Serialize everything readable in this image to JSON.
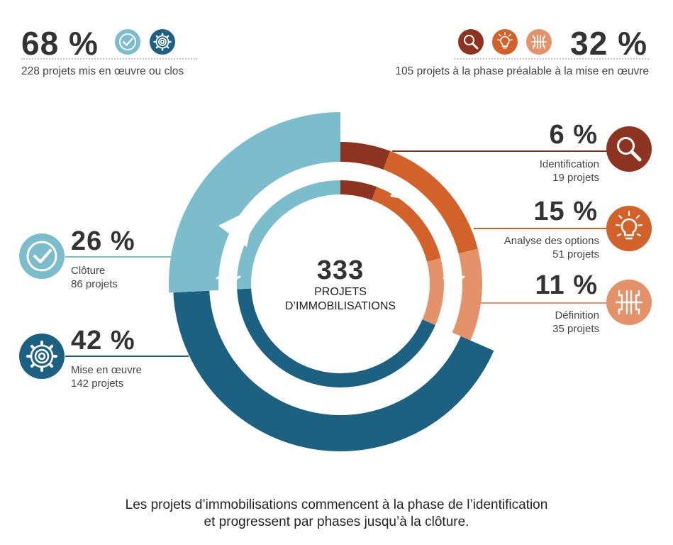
{
  "summary": {
    "left": {
      "percent": "68 %",
      "text": "228 projets mis en œuvre ou clos"
    },
    "right": {
      "percent": "32 %",
      "text": "105 projets à la phase préalable à la mise en œuvre"
    }
  },
  "center": {
    "total": "333",
    "label_line1": "PROJETS",
    "label_line2": "D’IMMOBILISATIONS"
  },
  "caption": {
    "line1": "Les projets d’immobilisations commencent à la phase de l’identification",
    "line2": "et progressent par phases jusqu’à la clôture."
  },
  "chart_data": {
    "type": "pie",
    "total": 333,
    "series": [
      {
        "name": "Identification",
        "percent_label": "6 %",
        "count_label": "19 projets",
        "value": 19,
        "percent": 6,
        "color": "#8c3420",
        "icon": "magnifier-icon"
      },
      {
        "name": "Analyse des options",
        "percent_label": "15 %",
        "count_label": "51 projets",
        "value": 51,
        "percent": 15,
        "color": "#d3622a",
        "icon": "lightbulb-icon"
      },
      {
        "name": "Définition",
        "percent_label": "11 %",
        "count_label": "35 projets",
        "value": 35,
        "percent": 11,
        "color": "#e3926a",
        "icon": "circuit-icon"
      },
      {
        "name": "Mise en œuvre",
        "percent_label": "42 %",
        "count_label": "142 projets",
        "value": 142,
        "percent": 42,
        "color": "#1c6182",
        "icon": "gear-icon"
      },
      {
        "name": "Clôture",
        "percent_label": "26 %",
        "count_label": "86 projets",
        "value": 86,
        "percent": 26,
        "color": "#7bbccd",
        "icon": "checkmark-icon"
      }
    ]
  }
}
